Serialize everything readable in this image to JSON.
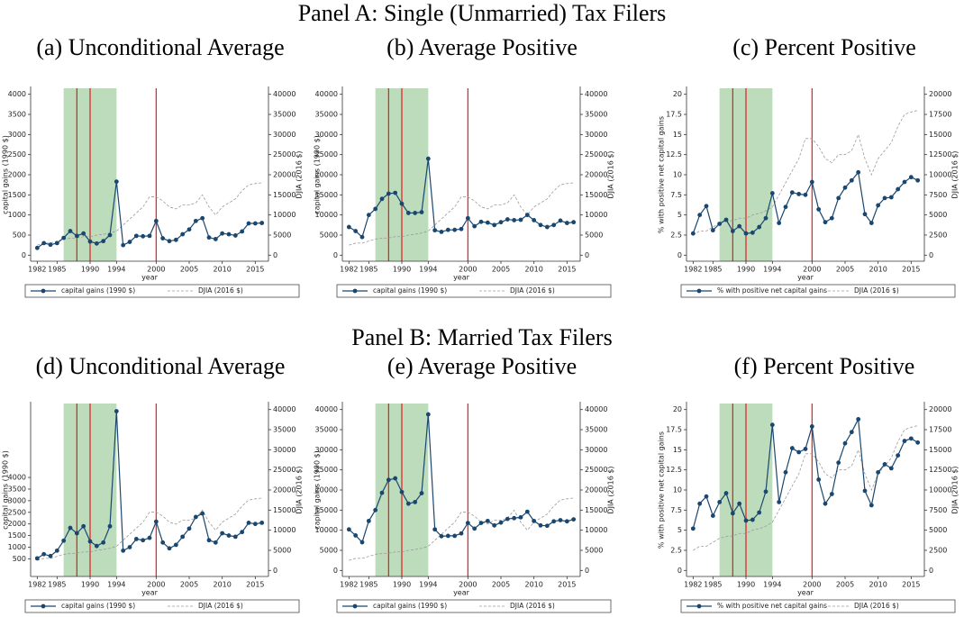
{
  "panels": [
    {
      "title": "Panel A: Single (Unmarried) Tax Filers"
    },
    {
      "title": "Panel B: Married Tax Filers"
    }
  ],
  "chart_data": [
    {
      "type": "line",
      "title": "(a) Unconditional Average",
      "xlabel": "year",
      "ylabel": "capital gains (1990 $)",
      "y2label": "DJIA (2016 $)",
      "x": [
        1982,
        1983,
        1984,
        1985,
        1986,
        1987,
        1988,
        1989,
        1990,
        1991,
        1992,
        1993,
        1994,
        1995,
        1996,
        1997,
        1998,
        1999,
        2000,
        2001,
        2002,
        2003,
        2004,
        2005,
        2006,
        2007,
        2008,
        2009,
        2010,
        2011,
        2012,
        2013,
        2014,
        2015,
        2016
      ],
      "xlim": [
        1981,
        2017
      ],
      "xticks": [
        1982,
        1985,
        1990,
        1994,
        2000,
        2005,
        2010,
        2015
      ],
      "ylim": [
        -150,
        4150
      ],
      "yticks": [
        0,
        500,
        1000,
        1500,
        2000,
        2500,
        3000,
        3500,
        4000
      ],
      "y2lim": [
        -1500,
        41500
      ],
      "y2ticks": [
        0,
        5000,
        10000,
        15000,
        20000,
        25000,
        30000,
        35000,
        40000
      ],
      "shade": [
        1986,
        1994
      ],
      "shade_color": "#bcdcbc",
      "vlines": [
        1988,
        1990,
        2000
      ],
      "vline_color": "#e41a1c",
      "series": [
        {
          "name": "capital gains (1990 $)",
          "color": "#1a476f",
          "marker": true,
          "values": [
            180,
            300,
            260,
            300,
            430,
            600,
            480,
            540,
            340,
            290,
            350,
            500,
            1830,
            250,
            330,
            480,
            470,
            480,
            850,
            420,
            350,
            380,
            520,
            640,
            850,
            920,
            440,
            400,
            540,
            520,
            490,
            590,
            790,
            790,
            800
          ]
        },
        {
          "name": "DJIA (2016 $)",
          "color": "#9a9a9a",
          "linestyle": "dashed",
          "axis": "y2",
          "values": [
            2500,
            3000,
            3000,
            3500,
            4000,
            4200,
            4300,
            4600,
            4600,
            5000,
            5200,
            5500,
            6000,
            7500,
            9000,
            10500,
            12000,
            14500,
            14500,
            13500,
            12000,
            11500,
            12500,
            12500,
            13000,
            15000,
            12000,
            10000,
            12000,
            13000,
            14000,
            16000,
            17500,
            17800,
            18000
          ]
        }
      ]
    },
    {
      "type": "line",
      "title": "(b) Average Positive",
      "xlabel": "year",
      "ylabel": "capital gains (1990 $)",
      "y2label": "DJIA (2016 $)",
      "x": [
        1982,
        1983,
        1984,
        1985,
        1986,
        1987,
        1988,
        1989,
        1990,
        1991,
        1992,
        1993,
        1994,
        1995,
        1996,
        1997,
        1998,
        1999,
        2000,
        2001,
        2002,
        2003,
        2004,
        2005,
        2006,
        2007,
        2008,
        2009,
        2010,
        2011,
        2012,
        2013,
        2014,
        2015,
        2016
      ],
      "xlim": [
        1981,
        2017
      ],
      "xticks": [
        1982,
        1985,
        1990,
        1994,
        2000,
        2005,
        2010,
        2015
      ],
      "ylim": [
        -1500,
        41500
      ],
      "yticks": [
        0,
        5000,
        10000,
        15000,
        20000,
        25000,
        30000,
        35000,
        40000
      ],
      "y2lim": [
        -1500,
        41500
      ],
      "y2ticks": [
        0,
        5000,
        10000,
        15000,
        20000,
        25000,
        30000,
        35000,
        40000
      ],
      "shade": [
        1986,
        1994
      ],
      "shade_color": "#bcdcbc",
      "vlines": [
        1988,
        1990,
        2000
      ],
      "vline_color": "#e41a1c",
      "series": [
        {
          "name": "capital gains (1990 $)",
          "color": "#1a476f",
          "marker": true,
          "values": [
            7000,
            6000,
            4500,
            10000,
            11500,
            14000,
            15300,
            15500,
            12800,
            10500,
            10500,
            10700,
            24000,
            6200,
            5800,
            6300,
            6300,
            6500,
            9200,
            7200,
            8300,
            8100,
            7500,
            8200,
            8900,
            8700,
            8800,
            10000,
            8700,
            7500,
            7000,
            7500,
            8600,
            8000,
            8200
          ]
        },
        {
          "name": "DJIA (2016 $)",
          "color": "#9a9a9a",
          "linestyle": "dashed",
          "axis": "y2",
          "values": [
            2500,
            3000,
            3000,
            3500,
            4000,
            4200,
            4300,
            4600,
            4600,
            5000,
            5200,
            5500,
            6000,
            7500,
            9000,
            10500,
            12000,
            14500,
            14500,
            13500,
            12000,
            11500,
            12500,
            12500,
            13000,
            15000,
            12000,
            10000,
            12000,
            13000,
            14000,
            16000,
            17500,
            17800,
            18000
          ]
        }
      ]
    },
    {
      "type": "line",
      "title": "(c) Percent Positive",
      "xlabel": "year",
      "ylabel": "% with positive net capital gains",
      "y2label": "DJIA (2016 $)",
      "x": [
        1982,
        1983,
        1984,
        1985,
        1986,
        1987,
        1988,
        1989,
        1990,
        1991,
        1992,
        1993,
        1994,
        1995,
        1996,
        1997,
        1998,
        1999,
        2000,
        2001,
        2002,
        2003,
        2004,
        2005,
        2006,
        2007,
        2008,
        2009,
        2010,
        2011,
        2012,
        2013,
        2014,
        2015,
        2016
      ],
      "xlim": [
        1981,
        2017
      ],
      "xticks": [
        1982,
        1985,
        1990,
        1994,
        2000,
        2005,
        2010,
        2015
      ],
      "ylim": [
        -0.75,
        20.75
      ],
      "yticks": [
        0,
        2.5,
        5,
        7.5,
        10,
        12.5,
        15,
        17.5,
        20
      ],
      "y2lim": [
        -750,
        20750
      ],
      "y2ticks": [
        0,
        2500,
        5000,
        7500,
        10000,
        12500,
        15000,
        17500,
        20000
      ],
      "shade": [
        1986,
        1994
      ],
      "shade_color": "#bcdcbc",
      "vlines": [
        1988,
        1990,
        2000
      ],
      "vline_color": "#e41a1c",
      "series": [
        {
          "name": "% with positive net capital gains",
          "color": "#1a476f",
          "marker": true,
          "values": [
            2.7,
            5.0,
            6.1,
            3.1,
            3.9,
            4.4,
            3.0,
            3.6,
            2.7,
            2.8,
            3.5,
            4.6,
            7.7,
            4.0,
            6.0,
            7.8,
            7.6,
            7.5,
            9.1,
            5.7,
            4.1,
            4.6,
            7.1,
            8.4,
            9.3,
            10.3,
            5.1,
            4.0,
            6.2,
            7.1,
            7.2,
            8.2,
            9.1,
            9.7,
            9.3
          ]
        },
        {
          "name": "DJIA (2016 $)",
          "color": "#9a9a9a",
          "linestyle": "dashed",
          "axis": "y2",
          "values": [
            2500,
            3000,
            3000,
            3500,
            4000,
            4200,
            4300,
            4600,
            4600,
            5000,
            5200,
            5500,
            6000,
            7500,
            9000,
            10500,
            12000,
            14500,
            14500,
            13500,
            12000,
            11500,
            12500,
            12500,
            13000,
            15000,
            12000,
            10000,
            12000,
            13000,
            14000,
            16000,
            17500,
            17800,
            18000
          ]
        }
      ]
    },
    {
      "type": "line",
      "title": "(d) Unconditional Average",
      "xlabel": "year",
      "ylabel": "capital gains (1990 $)",
      "y2label": "DJIA (2016 $)",
      "x": [
        1982,
        1983,
        1984,
        1985,
        1986,
        1987,
        1988,
        1989,
        1990,
        1991,
        1992,
        1993,
        1994,
        1995,
        1996,
        1997,
        1998,
        1999,
        2000,
        2001,
        2002,
        2003,
        2004,
        2005,
        2006,
        2007,
        2008,
        2009,
        2010,
        2011,
        2012,
        2013,
        2014,
        2015,
        2016
      ],
      "xlim": [
        1981,
        2017
      ],
      "xticks": [
        1982,
        1985,
        1990,
        1994,
        2000,
        2005,
        2010,
        2015
      ],
      "ylim": [
        -260,
        7180
      ],
      "yticks": [
        500,
        1000,
        1500,
        2000,
        2500,
        3000,
        3500,
        4000
      ],
      "y2lim": [
        -1500,
        41500
      ],
      "y2ticks": [
        0,
        5000,
        10000,
        15000,
        20000,
        25000,
        30000,
        35000,
        40000
      ],
      "shade": [
        1986,
        1994
      ],
      "shade_color": "#bcdcbc",
      "vlines": [
        1988,
        1990,
        2000
      ],
      "vline_color": "#e41a1c",
      "series": [
        {
          "name": "capital gains (1990 $)",
          "color": "#1a476f",
          "marker": true,
          "values": [
            520,
            700,
            620,
            850,
            1280,
            1830,
            1600,
            1900,
            1250,
            1050,
            1200,
            1900,
            6850,
            850,
            1000,
            1350,
            1300,
            1400,
            2100,
            1200,
            950,
            1100,
            1450,
            1800,
            2300,
            2450,
            1300,
            1200,
            1600,
            1500,
            1450,
            1650,
            2050,
            2000,
            2050
          ]
        },
        {
          "name": "DJIA (2016 $)",
          "color": "#9a9a9a",
          "linestyle": "dashed",
          "axis": "y2",
          "values": [
            2500,
            3000,
            3000,
            3500,
            4000,
            4200,
            4300,
            4600,
            4600,
            5000,
            5200,
            5500,
            6000,
            7500,
            9000,
            10500,
            12000,
            14500,
            14500,
            13500,
            12000,
            11500,
            12500,
            12500,
            13000,
            15000,
            12000,
            10000,
            12000,
            13000,
            14000,
            16000,
            17500,
            17800,
            18000
          ]
        }
      ]
    },
    {
      "type": "line",
      "title": "(e) Average Positive",
      "xlabel": "year",
      "ylabel": "capital gains (1990 $)",
      "y2label": "DJIA (2016 $)",
      "x": [
        1982,
        1983,
        1984,
        1985,
        1986,
        1987,
        1988,
        1989,
        1990,
        1991,
        1992,
        1993,
        1994,
        1995,
        1996,
        1997,
        1998,
        1999,
        2000,
        2001,
        2002,
        2003,
        2004,
        2005,
        2006,
        2007,
        2008,
        2009,
        2010,
        2011,
        2012,
        2013,
        2014,
        2015,
        2016
      ],
      "xlim": [
        1981,
        2017
      ],
      "xticks": [
        1982,
        1985,
        1990,
        1994,
        2000,
        2005,
        2010,
        2015
      ],
      "ylim": [
        -1500,
        41500
      ],
      "yticks": [
        0,
        5000,
        10000,
        15000,
        20000,
        25000,
        30000,
        35000,
        40000
      ],
      "y2lim": [
        -1500,
        41500
      ],
      "y2ticks": [
        0,
        5000,
        10000,
        15000,
        20000,
        25000,
        30000,
        35000,
        40000
      ],
      "shade": [
        1986,
        1994
      ],
      "shade_color": "#bcdcbc",
      "vlines": [
        1988,
        1990,
        2000
      ],
      "vline_color": "#e41a1c",
      "series": [
        {
          "name": "capital gains (1990 $)",
          "color": "#1a476f",
          "marker": true,
          "values": [
            10200,
            8700,
            7000,
            12300,
            15000,
            19300,
            22500,
            22900,
            19500,
            16600,
            17000,
            19200,
            38800,
            10200,
            8500,
            8600,
            8600,
            9200,
            11800,
            10400,
            11800,
            12300,
            11200,
            11900,
            12800,
            13000,
            13200,
            14600,
            12300,
            11200,
            11100,
            12200,
            12500,
            12200,
            12700
          ]
        },
        {
          "name": "DJIA (2016 $)",
          "color": "#9a9a9a",
          "linestyle": "dashed",
          "axis": "y2",
          "values": [
            2500,
            3000,
            3000,
            3500,
            4000,
            4200,
            4300,
            4600,
            4600,
            5000,
            5200,
            5500,
            6000,
            7500,
            9000,
            10500,
            12000,
            14500,
            14500,
            13500,
            12000,
            11500,
            12500,
            12500,
            13000,
            15000,
            12000,
            10000,
            12000,
            13000,
            14000,
            16000,
            17500,
            17800,
            18000
          ]
        }
      ]
    },
    {
      "type": "line",
      "title": "(f) Percent Positive",
      "xlabel": "year",
      "ylabel": "% with positive net capital gains",
      "y2label": "DJIA (2016 $)",
      "x": [
        1982,
        1983,
        1984,
        1985,
        1986,
        1987,
        1988,
        1989,
        1990,
        1991,
        1992,
        1993,
        1994,
        1995,
        1996,
        1997,
        1998,
        1999,
        2000,
        2001,
        2002,
        2003,
        2004,
        2005,
        2006,
        2007,
        2008,
        2009,
        2010,
        2011,
        2012,
        2013,
        2014,
        2015,
        2016
      ],
      "xlim": [
        1981,
        2017
      ],
      "xticks": [
        1982,
        1985,
        1990,
        1994,
        2000,
        2005,
        2010,
        2015
      ],
      "ylim": [
        -0.75,
        20.75
      ],
      "yticks": [
        0,
        2.5,
        5,
        7.5,
        10,
        12.5,
        15,
        17.5,
        20
      ],
      "y2lim": [
        -750,
        20750
      ],
      "y2ticks": [
        0,
        2500,
        5000,
        7500,
        10000,
        12500,
        15000,
        17500,
        20000
      ],
      "shade": [
        1986,
        1994
      ],
      "shade_color": "#bcdcbc",
      "vlines": [
        1988,
        1990,
        2000
      ],
      "vline_color": "#e41a1c",
      "series": [
        {
          "name": "% with positive net capital gains",
          "color": "#1a476f",
          "marker": true,
          "values": [
            5.2,
            8.3,
            9.2,
            6.8,
            8.5,
            9.6,
            7.1,
            8.3,
            6.2,
            6.3,
            7.2,
            9.8,
            18.1,
            8.5,
            12.2,
            15.2,
            14.7,
            15.1,
            17.9,
            11.3,
            8.3,
            9.5,
            13.4,
            15.8,
            17.2,
            18.8,
            9.9,
            8.1,
            12.2,
            13.2,
            12.7,
            14.3,
            16.1,
            16.4,
            15.9
          ]
        },
        {
          "name": "DJIA (2016 $)",
          "color": "#9a9a9a",
          "linestyle": "dashed",
          "axis": "y2",
          "values": [
            2500,
            3000,
            3000,
            3500,
            4000,
            4200,
            4300,
            4600,
            4600,
            5000,
            5200,
            5500,
            6000,
            7500,
            9000,
            10500,
            12000,
            14500,
            14500,
            13500,
            12000,
            11500,
            12500,
            12500,
            13000,
            15000,
            12000,
            10000,
            12000,
            13000,
            14000,
            16000,
            17500,
            17800,
            18000
          ]
        }
      ]
    }
  ]
}
